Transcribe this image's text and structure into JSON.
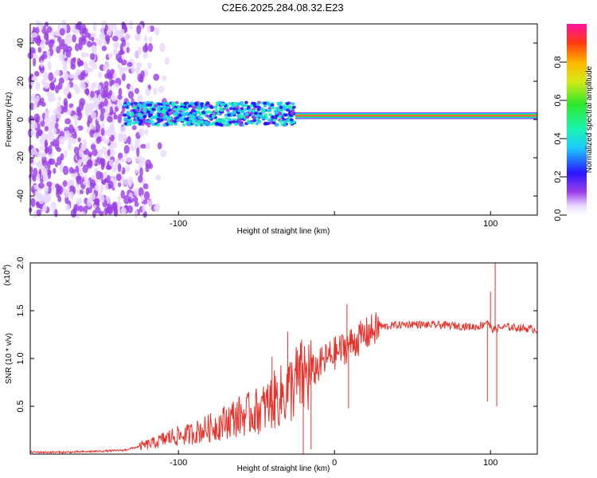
{
  "title": "C2E6.2025.284.08.32.E23",
  "colors": {
    "snr_line": "#e8312a",
    "frame": "#000000",
    "cbar": [
      "#ffffff",
      "#e8d8ff",
      "#9a3fe6",
      "#2a14ff",
      "#1cc9ff",
      "#18f5b0",
      "#2ee82a",
      "#d6ea14",
      "#ffb400",
      "#ff3a10",
      "#ff10a0"
    ]
  },
  "chart_data": [
    {
      "type": "heatmap",
      "title": "",
      "xlabel": "Height of straight line (km)",
      "ylabel": "Frequency (Hz)",
      "xlim": [
        -195,
        130
      ],
      "ylim": [
        -50,
        50
      ],
      "xticks": [
        -100,
        0,
        100
      ],
      "xticklabels": [
        "-100",
        "",
        "100"
      ],
      "yticks": [
        -40,
        -20,
        0,
        20,
        40
      ],
      "yticklabels": [
        "-40",
        "-20",
        "0",
        "20",
        "40"
      ],
      "colorbar": {
        "label": "Normalized spectral amplitude",
        "range": [
          0,
          1
        ],
        "ticks": [
          0.0,
          0.2,
          0.4,
          0.6,
          0.8
        ],
        "ticklabels": [
          "0.0",
          "0.2",
          "0.4",
          "0.6",
          "0.8"
        ]
      },
      "signal_band": {
        "center_hz": 2,
        "halfwidth_hz": 1.5,
        "from_km": -25,
        "to_km": 130,
        "amplitude": 1.0
      },
      "noise_region": {
        "from_km": -195,
        "to_km": -105,
        "amplitude_range": [
          0.05,
          0.25
        ]
      },
      "scatter_band": {
        "from_km": -135,
        "to_km": -25,
        "center_hz": 3,
        "halfwidth_hz": 6,
        "amplitude_range": [
          0.2,
          0.55
        ]
      }
    },
    {
      "type": "line",
      "title": "",
      "xlabel": "Height of straight line (km)",
      "ylabel": "SNR (10 * v/v)",
      "scale_label": "(x10",
      "scale_exp": "4",
      "scale_close": ")",
      "xlim": [
        -195,
        130
      ],
      "ylim": [
        0,
        2.0
      ],
      "xticks": [
        -100,
        0,
        100
      ],
      "xticklabels": [
        "-100",
        "0",
        "100"
      ],
      "yticks": [
        0.5,
        1.0,
        1.5,
        2.0
      ],
      "yticklabels": [
        "0.5",
        "1.0",
        "1.5",
        "2.0"
      ],
      "series": [
        {
          "name": "SNR",
          "x": [
            -195,
            -170,
            -150,
            -135,
            -125,
            -115,
            -105,
            -95,
            -85,
            -75,
            -65,
            -55,
            -45,
            -40,
            -35,
            -30,
            -25,
            -20,
            -15,
            -10,
            -5,
            0,
            5,
            10,
            15,
            20,
            25,
            30,
            40,
            50,
            60,
            70,
            80,
            90,
            95,
            98,
            100,
            102,
            105,
            110,
            120,
            130
          ],
          "y": [
            0.02,
            0.02,
            0.03,
            0.04,
            0.08,
            0.12,
            0.18,
            0.2,
            0.25,
            0.3,
            0.38,
            0.42,
            0.48,
            0.55,
            0.6,
            0.65,
            0.75,
            0.8,
            0.85,
            0.92,
            1.0,
            1.05,
            1.1,
            1.15,
            1.2,
            1.25,
            1.3,
            1.33,
            1.35,
            1.36,
            1.35,
            1.35,
            1.34,
            1.33,
            1.35,
            1.4,
            1.32,
            1.3,
            1.32,
            1.33,
            1.32,
            1.3
          ]
        }
      ],
      "spikes": [
        {
          "x": 8,
          "y": 1.57
        },
        {
          "x": 9,
          "y": 0.48
        },
        {
          "x": 98,
          "y": 0.55
        },
        {
          "x": 100,
          "y": 1.7
        },
        {
          "x": 103,
          "y": 2.0
        },
        {
          "x": 104,
          "y": 0.5
        },
        {
          "x": -40,
          "y": 1.02
        },
        {
          "x": -30,
          "y": 1.28
        },
        {
          "x": -20,
          "y": 0.0
        },
        {
          "x": -15,
          "y": 0.05
        }
      ]
    }
  ]
}
